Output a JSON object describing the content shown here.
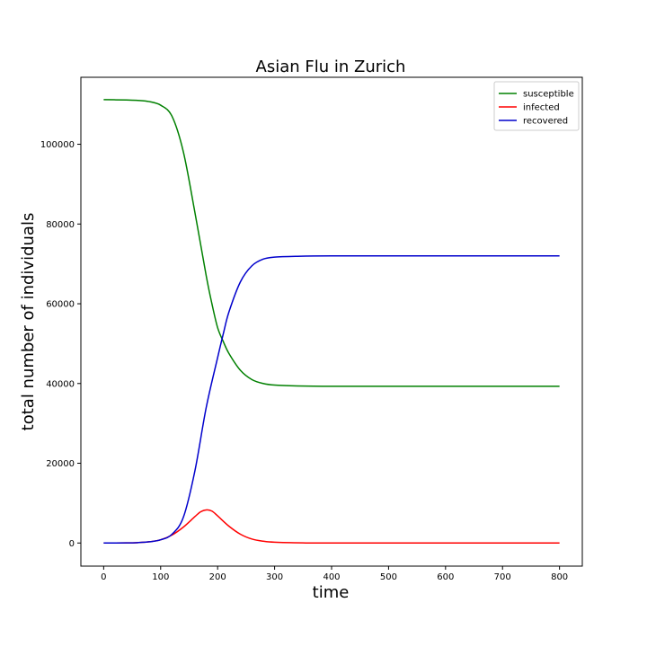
{
  "chart_data": {
    "type": "line",
    "title": "Asian Flu in Zurich",
    "xlabel": "time",
    "ylabel": "total number of individuals",
    "xlim": [
      -40,
      840
    ],
    "ylim": [
      -5800,
      116800
    ],
    "xticks": [
      0,
      100,
      200,
      300,
      400,
      500,
      600,
      700,
      800
    ],
    "yticks": [
      0,
      20000,
      40000,
      60000,
      80000,
      100000
    ],
    "grid": false,
    "legend_position": "top-right",
    "series": [
      {
        "name": "susceptible",
        "color": "#008000",
        "points": [
          [
            0,
            111200
          ],
          [
            40,
            111100
          ],
          [
            60,
            111000
          ],
          [
            80,
            110700
          ],
          [
            100,
            109800
          ],
          [
            120,
            107000
          ],
          [
            140,
            98000
          ],
          [
            160,
            83000
          ],
          [
            180,
            67000
          ],
          [
            190,
            60000
          ],
          [
            200,
            54000
          ],
          [
            210,
            50500
          ],
          [
            220,
            47500
          ],
          [
            240,
            43300
          ],
          [
            260,
            41000
          ],
          [
            280,
            40000
          ],
          [
            300,
            39600
          ],
          [
            340,
            39400
          ],
          [
            400,
            39300
          ],
          [
            500,
            39300
          ],
          [
            600,
            39300
          ],
          [
            700,
            39300
          ],
          [
            800,
            39300
          ]
        ]
      },
      {
        "name": "infected",
        "color": "#ff0000",
        "points": [
          [
            0,
            0
          ],
          [
            40,
            30
          ],
          [
            60,
            100
          ],
          [
            80,
            300
          ],
          [
            100,
            800
          ],
          [
            120,
            2000
          ],
          [
            140,
            4000
          ],
          [
            160,
            6600
          ],
          [
            170,
            7800
          ],
          [
            180,
            8300
          ],
          [
            190,
            8000
          ],
          [
            200,
            6800
          ],
          [
            220,
            4200
          ],
          [
            240,
            2200
          ],
          [
            260,
            1000
          ],
          [
            280,
            450
          ],
          [
            300,
            200
          ],
          [
            350,
            30
          ],
          [
            400,
            0
          ],
          [
            800,
            0
          ]
        ]
      },
      {
        "name": "recovered",
        "color": "#0000cc",
        "points": [
          [
            0,
            0
          ],
          [
            40,
            30
          ],
          [
            60,
            100
          ],
          [
            80,
            300
          ],
          [
            100,
            800
          ],
          [
            120,
            2200
          ],
          [
            140,
            6500
          ],
          [
            160,
            18000
          ],
          [
            180,
            34000
          ],
          [
            200,
            46500
          ],
          [
            210,
            52500
          ],
          [
            220,
            58000
          ],
          [
            240,
            65500
          ],
          [
            260,
            69500
          ],
          [
            280,
            71200
          ],
          [
            300,
            71700
          ],
          [
            340,
            71900
          ],
          [
            400,
            72000
          ],
          [
            500,
            72000
          ],
          [
            600,
            72000
          ],
          [
            700,
            72000
          ],
          [
            800,
            72000
          ]
        ]
      }
    ]
  }
}
